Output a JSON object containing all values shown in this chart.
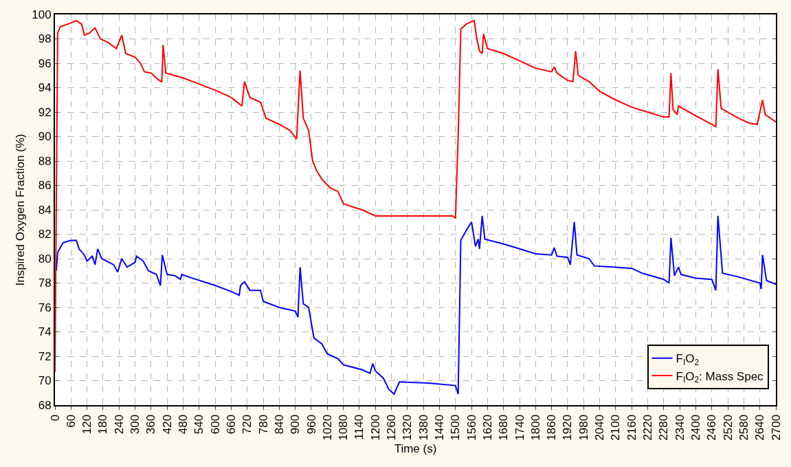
{
  "chart_data": {
    "type": "line",
    "xlabel": "Time (s)",
    "ylabel": "Inspired Oxygen Fraction (%)",
    "xlim": [
      0,
      2700
    ],
    "xticks": [
      0,
      60,
      120,
      180,
      240,
      300,
      360,
      420,
      480,
      540,
      600,
      660,
      720,
      780,
      840,
      900,
      960,
      1020,
      1080,
      1140,
      1200,
      1260,
      1320,
      1380,
      1440,
      1500,
      1560,
      1620,
      1680,
      1740,
      1800,
      1860,
      1920,
      1980,
      2040,
      2100,
      2160,
      2220,
      2280,
      2340,
      2400,
      2460,
      2520,
      2580,
      2640,
      2700
    ],
    "ylim": [
      68,
      100
    ],
    "yticks": [
      68,
      70,
      72,
      74,
      76,
      78,
      80,
      82,
      84,
      86,
      88,
      90,
      92,
      94,
      96,
      98,
      100
    ],
    "grid": true,
    "legend": "bottom right",
    "marker": "none",
    "line_style": "solid",
    "series": [
      {
        "name": "F$_{I}$O$_{2}$",
        "color": "#0000ff",
        "x": [
          5,
          10,
          30,
          60,
          80,
          90,
          110,
          120,
          140,
          150,
          160,
          175,
          220,
          235,
          250,
          270,
          300,
          305,
          330,
          350,
          380,
          395,
          402,
          420,
          450,
          470,
          475,
          500,
          600,
          660,
          690,
          695,
          710,
          730,
          770,
          780,
          840,
          900,
          910,
          918,
          930,
          950,
          970,
          1000,
          1020,
          1060,
          1080,
          1150,
          1180,
          1190,
          1200,
          1230,
          1250,
          1270,
          1290,
          1400,
          1500,
          1510,
          1520,
          1540,
          1560,
          1575,
          1585,
          1590,
          1600,
          1610,
          1680,
          1740,
          1800,
          1860,
          1870,
          1880,
          1920,
          1930,
          1945,
          1955,
          2000,
          2020,
          2100,
          2160,
          2200,
          2280,
          2300,
          2307,
          2320,
          2335,
          2345,
          2400,
          2460,
          2475,
          2483,
          2500,
          2560,
          2640,
          2645,
          2650,
          2665,
          2700
        ],
        "values": [
          79,
          80.5,
          81.3,
          81.5,
          81.5,
          80.8,
          80.3,
          79.8,
          80.2,
          79.5,
          80.8,
          80,
          79.5,
          78.9,
          80,
          79.3,
          79.7,
          80.2,
          79.8,
          79,
          78.7,
          77.8,
          80.3,
          78.7,
          78.6,
          78.3,
          78.7,
          78.5,
          77.8,
          77.3,
          77,
          77.8,
          78.1,
          77.4,
          77.4,
          76.5,
          76,
          75.7,
          75.2,
          79.3,
          76.3,
          76,
          73.5,
          73,
          72.2,
          71.8,
          71.3,
          70.9,
          70.6,
          71.4,
          70.8,
          70.2,
          69.3,
          68.9,
          69.9,
          69.8,
          69.6,
          68.9,
          81.5,
          82.3,
          83,
          81,
          81.6,
          80.8,
          83.5,
          81.6,
          81.2,
          80.8,
          80.4,
          80.3,
          80.9,
          80.2,
          80.1,
          79.5,
          83,
          80.3,
          80,
          79.4,
          79.3,
          79.2,
          78.8,
          78.3,
          78,
          81.7,
          78.6,
          79.3,
          78.7,
          78.4,
          78.3,
          77.4,
          83.5,
          78.8,
          78.5,
          78,
          77.5,
          80.3,
          78.2,
          77.9
        ]
      },
      {
        "name": "F$_{I}$O$_{2}$: Mass Spec",
        "color": "#ff0000",
        "x": [
          0,
          10,
          20,
          60,
          80,
          100,
          110,
          130,
          150,
          170,
          200,
          230,
          250,
          265,
          300,
          320,
          335,
          360,
          390,
          400,
          405,
          415,
          480,
          540,
          600,
          660,
          700,
          710,
          730,
          770,
          790,
          840,
          880,
          905,
          918,
          930,
          950,
          965,
          980,
          1000,
          1030,
          1060,
          1080,
          1120,
          1150,
          1200,
          1300,
          1400,
          1490,
          1500,
          1510,
          1520,
          1540,
          1570,
          1580,
          1590,
          1600,
          1605,
          1620,
          1680,
          1740,
          1800,
          1860,
          1870,
          1880,
          1920,
          1940,
          1950,
          1960,
          2000,
          2040,
          2100,
          2160,
          2220,
          2280,
          2300,
          2307,
          2315,
          2330,
          2335,
          2400,
          2460,
          2475,
          2483,
          2495,
          2560,
          2600,
          2630,
          2650,
          2660,
          2700
        ],
        "values": [
          70.7,
          98.5,
          99,
          99.3,
          99.5,
          99.2,
          98.3,
          98.5,
          98.9,
          98,
          97.7,
          97.2,
          98.3,
          96.8,
          96.5,
          96,
          95.3,
          95.2,
          94.6,
          94.5,
          97.5,
          95.2,
          94.8,
          94.3,
          93.8,
          93.2,
          92.5,
          94.5,
          93.2,
          92.8,
          91.5,
          91,
          90.5,
          89.8,
          95.4,
          91.5,
          90.5,
          88,
          87.2,
          86.5,
          85.8,
          85.5,
          84.5,
          84.2,
          84,
          83.5,
          83.5,
          83.5,
          83.5,
          83.3,
          90,
          98.8,
          99.2,
          99.5,
          98,
          97,
          96.8,
          98.4,
          97.2,
          96.8,
          96.2,
          95.6,
          95.3,
          95.7,
          95.2,
          94.6,
          94.5,
          97,
          95,
          94.5,
          93.7,
          93,
          92.4,
          92,
          91.6,
          91.6,
          95.2,
          92.2,
          91.8,
          92.5,
          91.7,
          91,
          90.8,
          95.5,
          92.3,
          91.5,
          91.1,
          91,
          93,
          91.8,
          91.2
        ]
      }
    ]
  }
}
